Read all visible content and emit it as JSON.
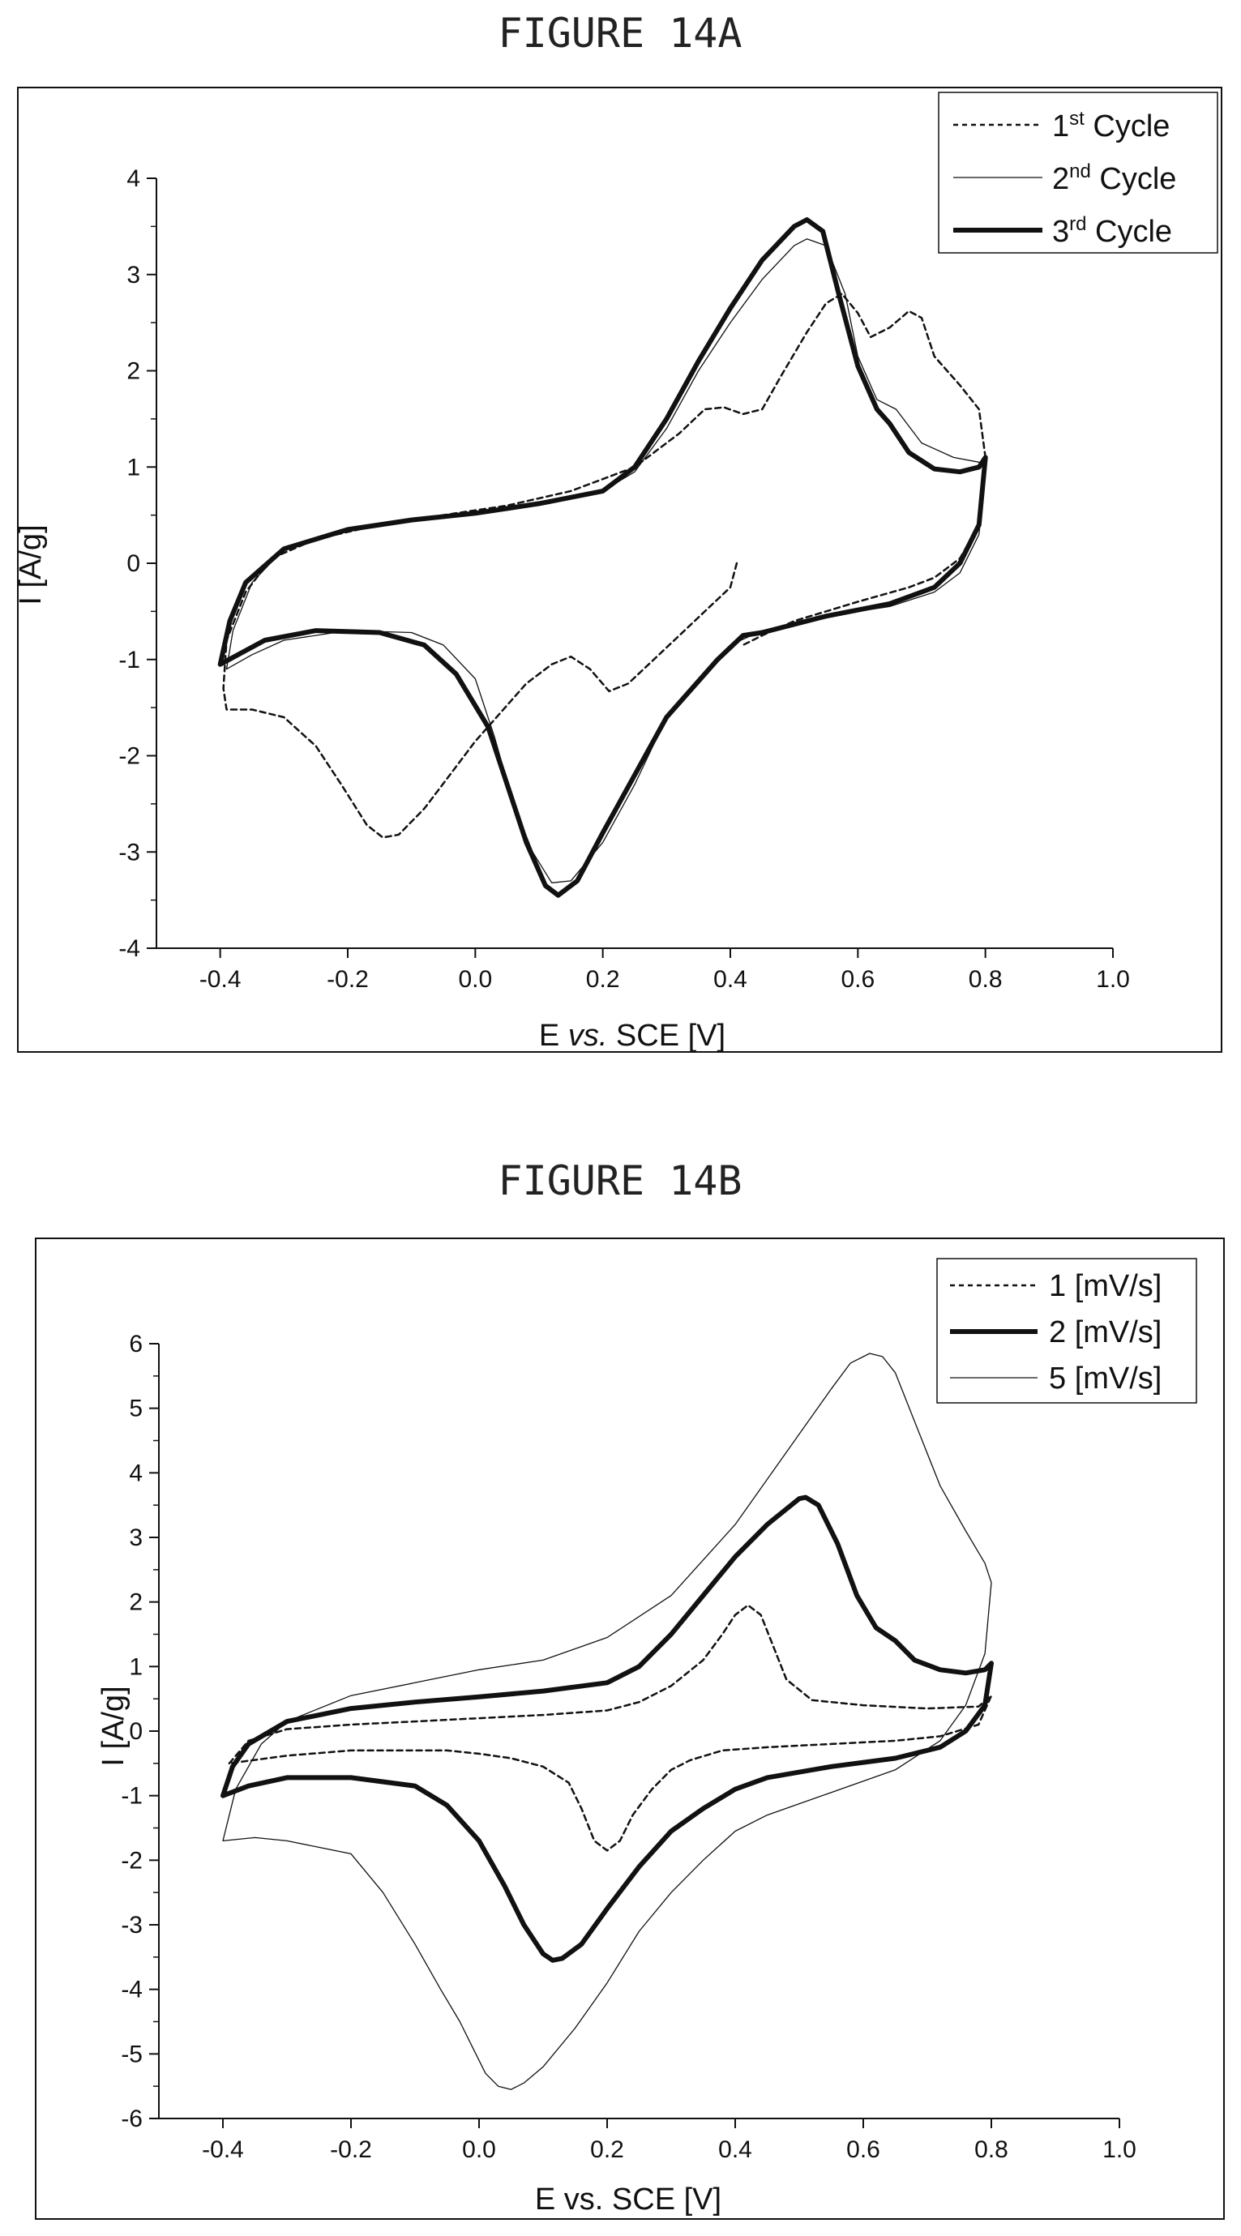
{
  "chart_data": [
    {
      "type": "line",
      "title": "FIGURE 14A",
      "xlabel_pre": "E ",
      "xlabel_em": "vs.",
      "xlabel_post": " SCE [V]",
      "ylabel": "I [A/g]",
      "xlim": [
        -0.5,
        1.0
      ],
      "ylim": [
        -4,
        4
      ],
      "xticks": [
        "-0.4",
        "-0.2",
        "0.0",
        "0.2",
        "0.4",
        "0.6",
        "0.8",
        "1.0"
      ],
      "xtick_values": [
        -0.4,
        -0.2,
        0.0,
        0.2,
        0.4,
        0.6,
        0.8,
        1.0
      ],
      "yticks": [
        "-4",
        "-3",
        "-2",
        "-1",
        "0",
        "1",
        "2",
        "3",
        "4"
      ],
      "ytick_values": [
        -4,
        -3,
        -2,
        -1,
        0,
        1,
        2,
        3,
        4
      ],
      "grid": false,
      "legend_position": "top-right",
      "series": [
        {
          "name_main": "1",
          "name_sup": "st",
          "name_rest": " Cycle",
          "style": "dashed",
          "x": [
            0.41,
            0.4,
            0.36,
            0.32,
            0.28,
            0.24,
            0.21,
            0.18,
            0.15,
            0.12,
            0.08,
            0.04,
            0.0,
            -0.04,
            -0.08,
            -0.12,
            -0.145,
            -0.17,
            -0.21,
            -0.25,
            -0.3,
            -0.35,
            -0.39,
            -0.395,
            -0.39,
            -0.36,
            -0.32,
            -0.25,
            -0.15,
            -0.05,
            0.05,
            0.15,
            0.25,
            0.32,
            0.36,
            0.39,
            0.42,
            0.45,
            0.48,
            0.52,
            0.55,
            0.575,
            0.6,
            0.62,
            0.65,
            0.68,
            0.7,
            0.72,
            0.76,
            0.79,
            0.8,
            0.79,
            0.76,
            0.72,
            0.68,
            0.6,
            0.5,
            0.45,
            0.42
          ],
          "y": [
            0.0,
            -0.25,
            -0.5,
            -0.75,
            -1.0,
            -1.25,
            -1.33,
            -1.1,
            -0.97,
            -1.05,
            -1.25,
            -1.55,
            -1.85,
            -2.2,
            -2.55,
            -2.82,
            -2.85,
            -2.72,
            -2.3,
            -1.9,
            -1.6,
            -1.52,
            -1.52,
            -1.3,
            -0.8,
            -0.3,
            0.05,
            0.25,
            0.4,
            0.5,
            0.6,
            0.75,
            1.0,
            1.35,
            1.6,
            1.62,
            1.55,
            1.6,
            1.95,
            2.4,
            2.7,
            2.8,
            2.6,
            2.35,
            2.45,
            2.62,
            2.55,
            2.15,
            1.85,
            1.6,
            1.1,
            0.4,
            0.05,
            -0.15,
            -0.25,
            -0.4,
            -0.6,
            -0.75,
            -0.85
          ]
        },
        {
          "name_main": "2",
          "name_sup": "nd",
          "name_rest": " Cycle",
          "style": "thin",
          "x": [
            -0.39,
            -0.38,
            -0.35,
            -0.3,
            -0.2,
            -0.1,
            0.0,
            0.1,
            0.2,
            0.25,
            0.3,
            0.35,
            0.4,
            0.45,
            0.5,
            0.52,
            0.55,
            0.58,
            0.6,
            0.63,
            0.66,
            0.7,
            0.75,
            0.79,
            0.8,
            0.79,
            0.76,
            0.72,
            0.65,
            0.55,
            0.45,
            0.4,
            0.35,
            0.3,
            0.25,
            0.2,
            0.15,
            0.12,
            0.09,
            0.06,
            0.03,
            0.0,
            -0.05,
            -0.1,
            -0.2,
            -0.3,
            -0.35,
            -0.39
          ],
          "y": [
            -1.1,
            -0.7,
            -0.2,
            0.15,
            0.33,
            0.43,
            0.52,
            0.62,
            0.75,
            0.95,
            1.4,
            2.0,
            2.5,
            2.95,
            3.3,
            3.37,
            3.3,
            2.8,
            2.15,
            1.7,
            1.6,
            1.25,
            1.1,
            1.05,
            1.0,
            0.3,
            -0.1,
            -0.3,
            -0.45,
            -0.55,
            -0.7,
            -0.85,
            -1.2,
            -1.6,
            -2.3,
            -2.9,
            -3.3,
            -3.32,
            -3.0,
            -2.5,
            -1.8,
            -1.2,
            -0.85,
            -0.72,
            -0.7,
            -0.8,
            -0.95,
            -1.1
          ]
        },
        {
          "name_main": "3",
          "name_sup": "rd",
          "name_rest": " Cycle",
          "style": "thick",
          "x": [
            -0.4,
            -0.385,
            -0.36,
            -0.3,
            -0.2,
            -0.1,
            0.0,
            0.1,
            0.2,
            0.25,
            0.3,
            0.35,
            0.4,
            0.45,
            0.5,
            0.52,
            0.545,
            0.57,
            0.6,
            0.63,
            0.65,
            0.68,
            0.72,
            0.76,
            0.79,
            0.8,
            0.79,
            0.76,
            0.72,
            0.65,
            0.55,
            0.45,
            0.42,
            0.38,
            0.34,
            0.3,
            0.25,
            0.2,
            0.16,
            0.13,
            0.11,
            0.08,
            0.05,
            0.02,
            -0.03,
            -0.08,
            -0.15,
            -0.25,
            -0.33,
            -0.4
          ],
          "y": [
            -1.05,
            -0.6,
            -0.2,
            0.15,
            0.35,
            0.45,
            0.52,
            0.62,
            0.75,
            1.0,
            1.5,
            2.1,
            2.65,
            3.15,
            3.5,
            3.57,
            3.45,
            2.8,
            2.05,
            1.6,
            1.45,
            1.15,
            0.98,
            0.95,
            1.0,
            1.1,
            0.4,
            0.0,
            -0.25,
            -0.42,
            -0.55,
            -0.72,
            -0.75,
            -1.0,
            -1.3,
            -1.6,
            -2.2,
            -2.8,
            -3.3,
            -3.45,
            -3.35,
            -2.9,
            -2.3,
            -1.7,
            -1.15,
            -0.85,
            -0.72,
            -0.7,
            -0.8,
            -1.05
          ]
        }
      ]
    },
    {
      "type": "line",
      "title": "FIGURE 14B",
      "xlabel": "E vs. SCE [V]",
      "ylabel": "I [A/g]",
      "xlim": [
        -0.5,
        1.0
      ],
      "ylim": [
        -6,
        6
      ],
      "xticks": [
        "-0.4",
        "-0.2",
        "0.0",
        "0.2",
        "0.4",
        "0.6",
        "0.8",
        "1.0"
      ],
      "xtick_values": [
        -0.4,
        -0.2,
        0.0,
        0.2,
        0.4,
        0.6,
        0.8,
        1.0
      ],
      "yticks": [
        "-6",
        "-5",
        "-4",
        "-3",
        "-2",
        "-1",
        "0",
        "1",
        "2",
        "3",
        "4",
        "5",
        "6"
      ],
      "ytick_values": [
        -6,
        -5,
        -4,
        -3,
        -2,
        -1,
        0,
        1,
        2,
        3,
        4,
        5,
        6
      ],
      "grid": false,
      "legend_position": "top-right",
      "series": [
        {
          "name": "1 [mV/s]",
          "style": "dashed",
          "x": [
            -0.39,
            -0.36,
            -0.3,
            -0.2,
            -0.1,
            0.0,
            0.1,
            0.2,
            0.25,
            0.3,
            0.35,
            0.38,
            0.4,
            0.42,
            0.44,
            0.46,
            0.48,
            0.52,
            0.6,
            0.7,
            0.78,
            0.8,
            0.78,
            0.72,
            0.65,
            0.55,
            0.45,
            0.38,
            0.33,
            0.3,
            0.27,
            0.24,
            0.22,
            0.2,
            0.18,
            0.16,
            0.14,
            0.1,
            0.05,
            0.0,
            -0.05,
            -0.1,
            -0.2,
            -0.3,
            -0.39
          ],
          "y": [
            -0.5,
            -0.15,
            0.03,
            0.1,
            0.15,
            0.2,
            0.25,
            0.32,
            0.45,
            0.7,
            1.1,
            1.5,
            1.8,
            1.95,
            1.8,
            1.3,
            0.8,
            0.48,
            0.4,
            0.35,
            0.38,
            0.55,
            0.1,
            -0.08,
            -0.15,
            -0.2,
            -0.25,
            -0.3,
            -0.45,
            -0.6,
            -0.9,
            -1.3,
            -1.7,
            -1.85,
            -1.7,
            -1.2,
            -0.8,
            -0.55,
            -0.42,
            -0.35,
            -0.3,
            -0.3,
            -0.3,
            -0.38,
            -0.5
          ]
        },
        {
          "name": "2 [mV/s]",
          "style": "thick",
          "x": [
            -0.4,
            -0.385,
            -0.36,
            -0.3,
            -0.2,
            -0.1,
            0.0,
            0.1,
            0.2,
            0.25,
            0.3,
            0.35,
            0.4,
            0.45,
            0.5,
            0.51,
            0.53,
            0.56,
            0.59,
            0.62,
            0.65,
            0.68,
            0.72,
            0.76,
            0.79,
            0.8,
            0.79,
            0.76,
            0.72,
            0.65,
            0.55,
            0.45,
            0.4,
            0.35,
            0.3,
            0.25,
            0.2,
            0.16,
            0.13,
            0.115,
            0.1,
            0.07,
            0.04,
            0.0,
            -0.05,
            -0.1,
            -0.2,
            -0.3,
            -0.36,
            -0.4
          ],
          "y": [
            -1.0,
            -0.55,
            -0.2,
            0.15,
            0.35,
            0.45,
            0.53,
            0.62,
            0.75,
            1.0,
            1.5,
            2.1,
            2.7,
            3.2,
            3.6,
            3.62,
            3.5,
            2.9,
            2.1,
            1.6,
            1.4,
            1.1,
            0.95,
            0.9,
            0.95,
            1.05,
            0.4,
            0.0,
            -0.25,
            -0.42,
            -0.55,
            -0.72,
            -0.9,
            -1.2,
            -1.55,
            -2.1,
            -2.75,
            -3.3,
            -3.52,
            -3.55,
            -3.45,
            -3.0,
            -2.4,
            -1.7,
            -1.15,
            -0.85,
            -0.72,
            -0.72,
            -0.85,
            -1.0
          ]
        },
        {
          "name": "5 [mV/s]",
          "style": "thin",
          "x": [
            -0.4,
            -0.38,
            -0.34,
            -0.3,
            -0.2,
            -0.1,
            0.0,
            0.1,
            0.2,
            0.3,
            0.4,
            0.5,
            0.55,
            0.58,
            0.61,
            0.63,
            0.65,
            0.68,
            0.72,
            0.76,
            0.79,
            0.8,
            0.79,
            0.76,
            0.72,
            0.65,
            0.55,
            0.45,
            0.4,
            0.35,
            0.3,
            0.25,
            0.2,
            0.15,
            0.1,
            0.07,
            0.05,
            0.03,
            0.01,
            -0.01,
            -0.03,
            -0.06,
            -0.1,
            -0.15,
            -0.2,
            -0.25,
            -0.3,
            -0.35,
            -0.4
          ],
          "y": [
            -1.7,
            -0.9,
            -0.2,
            0.15,
            0.55,
            0.75,
            0.95,
            1.1,
            1.45,
            2.1,
            3.2,
            4.6,
            5.3,
            5.7,
            5.85,
            5.8,
            5.55,
            4.8,
            3.8,
            3.1,
            2.6,
            2.3,
            1.2,
            0.4,
            -0.15,
            -0.6,
            -0.95,
            -1.3,
            -1.55,
            -2.0,
            -2.5,
            -3.1,
            -3.9,
            -4.6,
            -5.2,
            -5.45,
            -5.55,
            -5.5,
            -5.3,
            -4.9,
            -4.5,
            -4.0,
            -3.3,
            -2.5,
            -1.9,
            -1.8,
            -1.7,
            -1.65,
            -1.7
          ]
        }
      ]
    }
  ]
}
